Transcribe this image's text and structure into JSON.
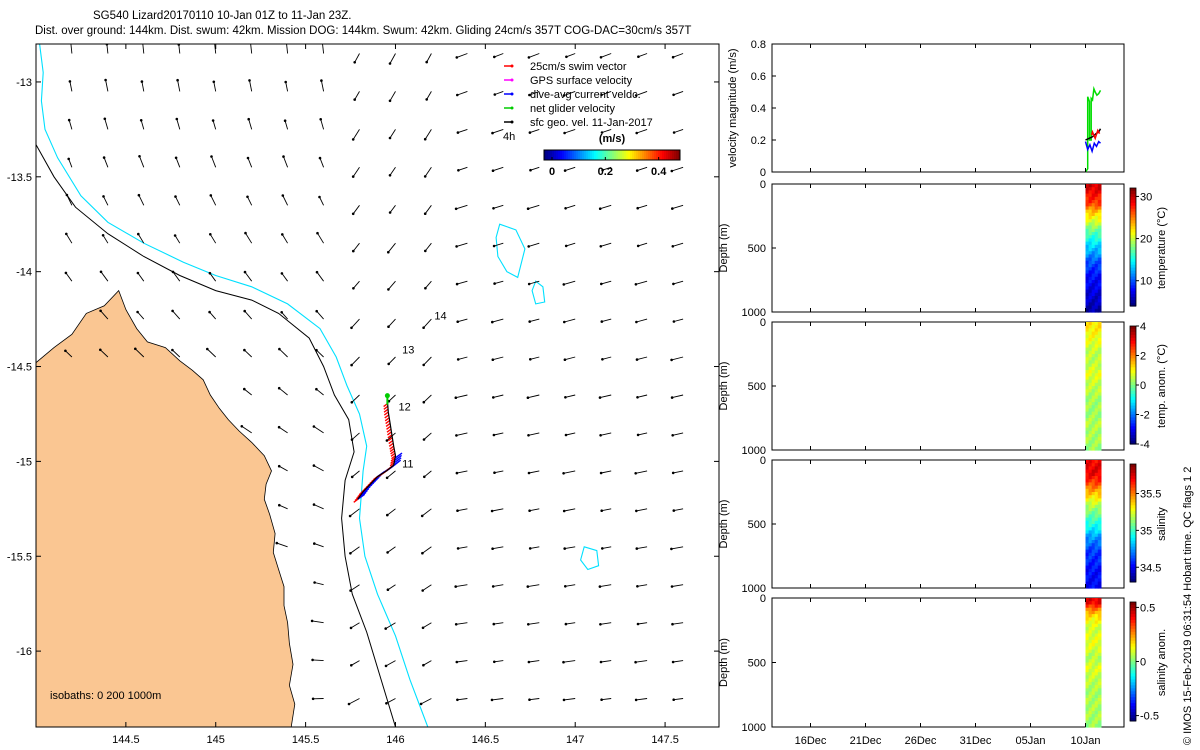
{
  "header": {
    "line1": "SG540 Lizard20170110 10-Jan 01Z to 11-Jan 23Z.",
    "line2": "Dist. over ground: 144km. Dist. swum: 42km. Mission DOG: 144km. Swum: 42km. Gliding 24cm/s 357T COG-DAC=30cm/s 357T"
  },
  "footer_stamp": "© IMOS 15-Feb-2019 06:31:54 Hobart time. QC flags 1  2",
  "chart_data": [
    {
      "type": "map",
      "name": "glider track and surface currents",
      "xlim": [
        144.0,
        147.8
      ],
      "ylim": [
        -16.4,
        -12.8
      ],
      "x_ticks": [
        "144.5",
        "145",
        "145.5",
        "146",
        "146.5",
        "147",
        "147.5"
      ],
      "x_tick_values": [
        144.5,
        145,
        145.5,
        146,
        146.5,
        147,
        147.5
      ],
      "y_ticks": [
        "-13",
        "-13.5",
        "-14",
        "-14.5",
        "-15",
        "-15.5",
        "-16"
      ],
      "y_tick_values": [
        -13,
        -13.5,
        -14,
        -14.5,
        -15,
        -15.5,
        -16
      ],
      "legend": [
        {
          "label": "25cm/s swim vector",
          "color": "#ff0000"
        },
        {
          "label": "GPS surface velocity",
          "color": "#ff00ff"
        },
        {
          "label": "dive-avg current veldc.",
          "color": "#0000ff"
        },
        {
          "label": "net glider velocity",
          "color": "#00cc00"
        },
        {
          "label": "sfc geo. vel. 11-Jan-2017",
          "color": "#000000"
        }
      ],
      "legend_extra": "4h",
      "colorbar": {
        "title": "(m/s)",
        "ticks": [
          "0",
          "0.2",
          "0.4"
        ],
        "tick_values": [
          0,
          0.2,
          0.4
        ],
        "range": [
          -0.03,
          0.48
        ]
      },
      "isobath_note": "isobaths: 0   200  1000m",
      "track": [
        [
          145.79,
          -15.2
        ],
        [
          145.82,
          -15.16
        ],
        [
          145.86,
          -15.12
        ],
        [
          145.9,
          -15.08
        ],
        [
          145.95,
          -15.05
        ],
        [
          145.99,
          -15.02
        ],
        [
          146.0,
          -14.97
        ],
        [
          145.99,
          -14.92
        ],
        [
          145.98,
          -14.86
        ],
        [
          145.97,
          -14.8
        ],
        [
          145.96,
          -14.74
        ],
        [
          145.955,
          -14.68
        ]
      ],
      "day_labels": [
        {
          "text": "11",
          "lon": 146.02,
          "lat": -15.01
        },
        {
          "text": "12",
          "lon": 146.0,
          "lat": -14.71
        },
        {
          "text": "13",
          "lon": 146.02,
          "lat": -14.41
        },
        {
          "text": "14",
          "lon": 146.2,
          "lat": -14.23
        }
      ],
      "coast": [
        [
          144.0,
          -14.48
        ],
        [
          144.1,
          -14.4
        ],
        [
          144.2,
          -14.33
        ],
        [
          144.28,
          -14.22
        ],
        [
          144.38,
          -14.18
        ],
        [
          144.46,
          -14.1
        ],
        [
          144.5,
          -14.2
        ],
        [
          144.56,
          -14.3
        ],
        [
          144.62,
          -14.37
        ],
        [
          144.72,
          -14.4
        ],
        [
          144.8,
          -14.47
        ],
        [
          144.87,
          -14.52
        ],
        [
          144.93,
          -14.57
        ],
        [
          144.97,
          -14.65
        ],
        [
          145.02,
          -14.72
        ],
        [
          145.07,
          -14.78
        ],
        [
          145.13,
          -14.84
        ],
        [
          145.2,
          -14.9
        ],
        [
          145.27,
          -14.97
        ],
        [
          145.31,
          -15.05
        ],
        [
          145.28,
          -15.12
        ],
        [
          145.27,
          -15.2
        ],
        [
          145.3,
          -15.28
        ],
        [
          145.33,
          -15.38
        ],
        [
          145.32,
          -15.48
        ],
        [
          145.35,
          -15.57
        ],
        [
          145.38,
          -15.66
        ],
        [
          145.38,
          -15.76
        ],
        [
          145.4,
          -15.85
        ],
        [
          145.41,
          -15.96
        ],
        [
          145.43,
          -16.07
        ],
        [
          145.41,
          -16.18
        ],
        [
          145.44,
          -16.28
        ],
        [
          145.42,
          -16.4
        ]
      ],
      "isobath_1000": [
        [
          144.0,
          -13.33
        ],
        [
          144.1,
          -13.5
        ],
        [
          144.22,
          -13.66
        ],
        [
          144.4,
          -13.8
        ],
        [
          144.6,
          -13.92
        ],
        [
          144.8,
          -14.02
        ],
        [
          145.0,
          -14.1
        ],
        [
          145.2,
          -14.15
        ],
        [
          145.35,
          -14.22
        ],
        [
          145.52,
          -14.35
        ],
        [
          145.6,
          -14.5
        ],
        [
          145.66,
          -14.65
        ],
        [
          145.74,
          -14.78
        ],
        [
          145.77,
          -14.95
        ],
        [
          145.72,
          -15.1
        ],
        [
          145.7,
          -15.3
        ],
        [
          145.72,
          -15.5
        ],
        [
          145.76,
          -15.7
        ],
        [
          145.84,
          -15.9
        ],
        [
          145.92,
          -16.15
        ],
        [
          146.0,
          -16.4
        ]
      ],
      "isobath_200": [
        [
          144.02,
          -12.8
        ],
        [
          144.04,
          -12.95
        ],
        [
          144.03,
          -13.1
        ],
        [
          144.05,
          -13.25
        ],
        [
          144.12,
          -13.4
        ],
        [
          144.25,
          -13.6
        ],
        [
          144.4,
          -13.74
        ],
        [
          144.6,
          -13.85
        ],
        [
          144.82,
          -13.95
        ],
        [
          145.0,
          -14.02
        ],
        [
          145.2,
          -14.08
        ],
        [
          145.4,
          -14.17
        ],
        [
          145.58,
          -14.3
        ],
        [
          145.67,
          -14.45
        ],
        [
          145.73,
          -14.6
        ],
        [
          145.8,
          -14.75
        ],
        [
          145.84,
          -14.92
        ],
        [
          145.82,
          -15.05
        ],
        [
          145.8,
          -15.3
        ],
        [
          145.83,
          -15.5
        ],
        [
          145.9,
          -15.7
        ],
        [
          146.0,
          -15.92
        ],
        [
          146.08,
          -16.15
        ],
        [
          146.18,
          -16.4
        ]
      ],
      "reef_contours": [
        [
          [
            146.58,
            -13.75
          ],
          [
            146.67,
            -13.78
          ],
          [
            146.72,
            -13.88
          ],
          [
            146.68,
            -14.03
          ],
          [
            146.62,
            -14.0
          ],
          [
            146.57,
            -13.92
          ],
          [
            146.56,
            -13.82
          ]
        ],
        [
          [
            146.78,
            -14.05
          ],
          [
            146.82,
            -14.08
          ],
          [
            146.83,
            -14.16
          ],
          [
            146.78,
            -14.17
          ],
          [
            146.76,
            -14.1
          ]
        ],
        [
          [
            147.05,
            -15.45
          ],
          [
            147.12,
            -15.47
          ],
          [
            147.13,
            -15.55
          ],
          [
            147.07,
            -15.57
          ],
          [
            147.03,
            -15.52
          ]
        ]
      ]
    },
    {
      "type": "line",
      "name": "velocity magnitude",
      "ylabel": "velocity magnitude (m/s)",
      "ylim": [
        0,
        0.8
      ],
      "y_ticks": [
        "0",
        "0.2",
        "0.4",
        "0.6",
        "0.8"
      ],
      "y_tick_values": [
        0,
        0.2,
        0.4,
        0.6,
        0.8
      ],
      "series": [
        {
          "name": "net glider velocity",
          "color": "#00dd00",
          "x": [
            0,
            0.5,
            0.5,
            0.9,
            0.9,
            1.3,
            1.3,
            1.6,
            1.9,
            2.2,
            2.6,
            3.0,
            3.4
          ],
          "values": [
            0.0,
            0.02,
            0.47,
            0.44,
            0.2,
            0.2,
            0.46,
            0.45,
            0.52,
            0.5,
            0.48,
            0.49,
            0.51
          ]
        },
        {
          "name": "dive-avg current",
          "color": "#0000ff",
          "x": [
            0,
            0.5,
            1.0,
            1.5,
            2.0,
            2.5,
            3.0,
            3.4
          ],
          "values": [
            0.19,
            0.14,
            0.17,
            0.13,
            0.18,
            0.16,
            0.19,
            0.18
          ]
        },
        {
          "name": "surface velocity",
          "color": "#000000",
          "x": [
            0,
            0.8,
            1.6,
            2.4,
            3.0,
            3.4
          ],
          "values": [
            0.2,
            0.21,
            0.22,
            0.24,
            0.25,
            0.27
          ]
        },
        {
          "name": "swim",
          "color": "#ff0000",
          "x": [
            1.4,
            1.6,
            2.2,
            2.8,
            3.2
          ],
          "values": [
            0.23,
            0.25,
            0.21,
            0.26,
            0.24
          ]
        }
      ]
    },
    {
      "type": "heatmap",
      "name": "temperature",
      "clabel": "temperature (°C)",
      "ylabel": "Depth (m)",
      "y_ticks": [
        "0",
        "500",
        "1000"
      ],
      "y_tick_values": [
        0,
        500,
        1000
      ],
      "c_ticks": [
        "10",
        "20",
        "30"
      ],
      "c_tick_values": [
        10,
        20,
        30
      ],
      "crange": [
        4,
        32
      ],
      "profile_depth": [
        0,
        50,
        100,
        150,
        200,
        300,
        400,
        500,
        600,
        700,
        800,
        900,
        1000
      ],
      "profile_values": [
        30,
        29,
        28,
        27,
        24,
        20,
        16,
        13,
        10,
        8,
        7,
        6,
        5
      ]
    },
    {
      "type": "heatmap",
      "name": "temperature anomaly",
      "clabel": "temp. anom. (°C)",
      "ylabel": "Depth (m)",
      "y_ticks": [
        "0",
        "500",
        "1000"
      ],
      "y_tick_values": [
        0,
        500,
        1000
      ],
      "c_ticks": [
        "4",
        "2",
        "0",
        "-2",
        "-4"
      ],
      "c_tick_values": [
        4,
        2,
        0,
        -2,
        -4
      ],
      "crange": [
        -4,
        4
      ],
      "profile_depth": [
        0,
        100,
        200,
        300,
        400,
        500,
        600,
        700,
        800,
        900,
        1000
      ],
      "profile_values": [
        1.2,
        1.0,
        0.6,
        0.4,
        0.8,
        0.5,
        0.3,
        0.2,
        0.4,
        0.3,
        0.2
      ]
    },
    {
      "type": "heatmap",
      "name": "salinity",
      "clabel": "salinity",
      "ylabel": "Depth (m)",
      "y_ticks": [
        "0",
        "500",
        "1000"
      ],
      "y_tick_values": [
        0,
        500,
        1000
      ],
      "c_ticks": [
        "35.5",
        "35",
        "34.5"
      ],
      "c_tick_values": [
        35.5,
        35,
        34.5
      ],
      "crange": [
        34.3,
        35.9
      ],
      "profile_depth": [
        0,
        100,
        200,
        300,
        400,
        500,
        600,
        700,
        800,
        900,
        1000
      ],
      "profile_values": [
        35.7,
        35.75,
        35.55,
        35.3,
        35.1,
        34.95,
        34.75,
        34.6,
        34.55,
        34.5,
        34.5
      ]
    },
    {
      "type": "heatmap",
      "name": "salinity anomaly",
      "clabel": "salinity anom.",
      "ylabel": "Depth (m)",
      "y_ticks": [
        "0",
        "500",
        "1000"
      ],
      "y_tick_values": [
        0,
        500,
        1000
      ],
      "c_ticks": [
        "0.5",
        "0",
        "-0.5"
      ],
      "c_tick_values": [
        0.5,
        0,
        -0.5
      ],
      "crange": [
        -0.55,
        0.55
      ],
      "profile_depth": [
        0,
        40,
        80,
        150,
        250,
        350,
        450,
        550,
        650,
        750,
        850,
        1000
      ],
      "profile_values": [
        0.45,
        0.42,
        0.3,
        0.15,
        0.08,
        0.12,
        0.05,
        0.1,
        0.06,
        0.04,
        0.05,
        0.03
      ]
    }
  ],
  "time_axis": {
    "ticks": [
      "16Dec",
      "21Dec",
      "26Dec",
      "31Dec",
      "05Jan",
      "10Jan"
    ],
    "tick_days": [
      0,
      5,
      10,
      15,
      20,
      25
    ],
    "xlim": [
      -3.5,
      28.5
    ],
    "data_start_day": 25.0,
    "data_end_day": 26.4
  }
}
